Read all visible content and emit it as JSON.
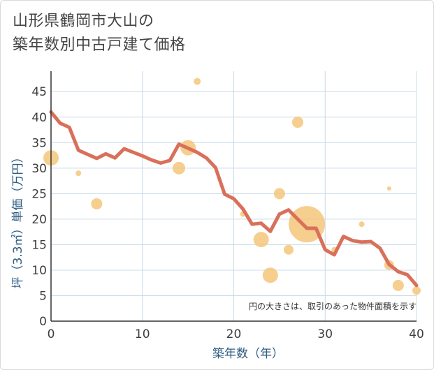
{
  "title": {
    "line1": "山形県鶴岡市大山の",
    "line2": "築年数別中古戸建て価格"
  },
  "colors": {
    "bubble": "#f5c57a",
    "line": "#d9705a",
    "grid": "#c9dcea",
    "axis_label": "#2e5c82"
  },
  "chart_data": {
    "type": "scatter",
    "title": "山形県鶴岡市大山の築年数別中古戸建て価格",
    "xlabel": "築年数（年）",
    "ylabel": "坪（3.3㎡）単価（万円）",
    "xlim": [
      0,
      40
    ],
    "ylim": [
      0,
      49
    ],
    "xticks": [
      0,
      10,
      20,
      30,
      40
    ],
    "yticks": [
      0,
      5,
      10,
      15,
      20,
      25,
      30,
      35,
      40,
      45
    ],
    "grid": true,
    "note": "円の大きさは、取引のあった物件面積を示す",
    "bubbles": [
      {
        "x": 0,
        "y": 32,
        "r": 11
      },
      {
        "x": 3,
        "y": 29,
        "r": 4
      },
      {
        "x": 5,
        "y": 23,
        "r": 8
      },
      {
        "x": 14,
        "y": 30,
        "r": 9
      },
      {
        "x": 15,
        "y": 34,
        "r": 11
      },
      {
        "x": 16,
        "y": 47,
        "r": 5
      },
      {
        "x": 21,
        "y": 21,
        "r": 4
      },
      {
        "x": 23,
        "y": 16,
        "r": 11
      },
      {
        "x": 24,
        "y": 9,
        "r": 11
      },
      {
        "x": 25,
        "y": 25,
        "r": 8
      },
      {
        "x": 26,
        "y": 14,
        "r": 7
      },
      {
        "x": 27,
        "y": 39,
        "r": 8
      },
      {
        "x": 28,
        "y": 19,
        "r": 26
      },
      {
        "x": 31,
        "y": 14,
        "r": 4
      },
      {
        "x": 34,
        "y": 19,
        "r": 4
      },
      {
        "x": 37,
        "y": 26,
        "r": 3
      },
      {
        "x": 37,
        "y": 11,
        "r": 7
      },
      {
        "x": 38,
        "y": 7,
        "r": 8
      },
      {
        "x": 40,
        "y": 6,
        "r": 6
      }
    ],
    "line": {
      "x": [
        0,
        1,
        2,
        3,
        4,
        5,
        6,
        7,
        8,
        9,
        10,
        11,
        12,
        13,
        14,
        15,
        16,
        17,
        18,
        19,
        20,
        21,
        22,
        23,
        24,
        25,
        26,
        27,
        28,
        29,
        30,
        31,
        32,
        33,
        34,
        35,
        36,
        37,
        38,
        39,
        40
      ],
      "y": [
        41,
        38.8,
        38,
        33.5,
        32.7,
        31.9,
        32.8,
        32,
        33.8,
        33.1,
        32.4,
        31.6,
        31,
        31.5,
        34.7,
        33.9,
        33.1,
        32,
        30.1,
        24.9,
        24,
        22,
        19,
        19.2,
        17.6,
        21,
        21.8,
        20,
        18.2,
        18.2,
        14,
        13,
        16.6,
        15.8,
        15.5,
        15.6,
        14.3,
        11.1,
        9.7,
        9.1,
        7
      ]
    }
  }
}
